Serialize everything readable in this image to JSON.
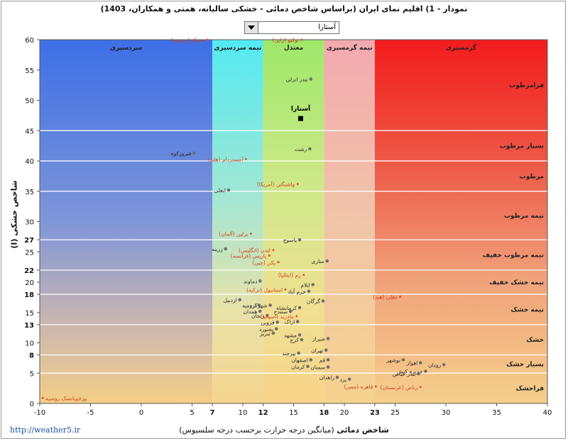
{
  "title": "نمودار - 1) اقلیم نمای ایران (براساس شاخص دمائی - خشکی سالیانه، همتی و همکاران، 1403)",
  "station_select": {
    "value": "آستارا"
  },
  "footer": {
    "url": "http://weather5.ir"
  },
  "chart_data": {
    "type": "scatter",
    "title": "نمودار - 1) اقلیم نمای ایران (براساس شاخص دمائی - خشکی سالیانه، همتی و همکاران، 1403)",
    "xlabel_main": "شاخص دمائی",
    "xlabel_sub": "(میانگین درجه حرارت برحسب درجه سلسیوس)",
    "ylabel": "شاخص خشکی (I)",
    "xlim": [
      -10,
      40
    ],
    "ylim": [
      0,
      60
    ],
    "x_ticks": [
      -10,
      -5,
      0,
      5,
      7,
      10,
      12,
      15,
      18,
      20,
      23,
      25,
      30,
      35,
      40
    ],
    "x_ticks_bold": [
      7,
      12,
      18,
      23
    ],
    "y_ticks": [
      0,
      5,
      8,
      10,
      13,
      15,
      18,
      20,
      22,
      25,
      27,
      30,
      35,
      40,
      45,
      50,
      55,
      60
    ],
    "y_ticks_bold": [
      8,
      13,
      18,
      22,
      27
    ],
    "temperature_zones": [
      {
        "label": "سردسیری",
        "from": -10,
        "to": 7
      },
      {
        "label": "نیمه سردسیری",
        "from": 7,
        "to": 12
      },
      {
        "label": "معتدل",
        "from": 12,
        "to": 18
      },
      {
        "label": "نیمه گرمسیری",
        "from": 18,
        "to": 23
      },
      {
        "label": "گرمسیری",
        "from": 23,
        "to": 40
      }
    ],
    "humidity_zones": [
      {
        "label": "فراخشک",
        "from": 0,
        "to": 5
      },
      {
        "label": "بسیار خشک",
        "from": 5,
        "to": 8
      },
      {
        "label": "خشک",
        "from": 8,
        "to": 13
      },
      {
        "label": "نیمه خشک",
        "from": 13,
        "to": 18
      },
      {
        "label": "نیمه خشک خفیف",
        "from": 18,
        "to": 22
      },
      {
        "label": "نیمه مرطوب خفیف",
        "from": 22,
        "to": 27
      },
      {
        "label": "نیمه مرطوب",
        "from": 27,
        "to": 35
      },
      {
        "label": "مرطوب",
        "from": 35,
        "to": 40
      },
      {
        "label": "بسیار مرطوب",
        "from": 40,
        "to": 45
      },
      {
        "label": "فرامرطوب",
        "from": 45,
        "to": 60
      }
    ],
    "highlighted_station": {
      "name": "آستارا",
      "x": 15.7,
      "y": 47
    },
    "iran_stations": [
      {
        "name": "بندر انزلی",
        "x": 16.7,
        "y": 53.5
      },
      {
        "name": "رشت",
        "x": 16.6,
        "y": 42
      },
      {
        "name": "فیروزکوه",
        "x": 5.2,
        "y": 41.3
      },
      {
        "name": "ابعلی",
        "x": 8.6,
        "y": 35.2
      },
      {
        "name": "یاسوج",
        "x": 15.6,
        "y": 27
      },
      {
        "name": "زرینه",
        "x": 8.3,
        "y": 25.5
      },
      {
        "name": "ساری",
        "x": 18.3,
        "y": 23.5
      },
      {
        "name": "دماوند",
        "x": 11.7,
        "y": 20.2
      },
      {
        "name": "ایلام",
        "x": 16.9,
        "y": 19.6
      },
      {
        "name": "خرم آباد",
        "x": 16.5,
        "y": 18.5
      },
      {
        "name": "گرگان",
        "x": 17.9,
        "y": 16.9
      },
      {
        "name": "اردبیل",
        "x": 9.7,
        "y": 17.1
      },
      {
        "name": "ارومیه",
        "x": 11.6,
        "y": 16.2
      },
      {
        "name": "شهرکرد",
        "x": 12.7,
        "y": 16.2
      },
      {
        "name": "کرمانشاه",
        "x": 15.6,
        "y": 15.8
      },
      {
        "name": "سنندج",
        "x": 14.7,
        "y": 15.2
      },
      {
        "name": "همدان",
        "x": 11.7,
        "y": 15.2
      },
      {
        "name": "زنجان",
        "x": 12.4,
        "y": 14.5
      },
      {
        "name": "اراک",
        "x": 15.4,
        "y": 13.5
      },
      {
        "name": "قزوین",
        "x": 13.4,
        "y": 13.4
      },
      {
        "name": "بجنورد",
        "x": 13.3,
        "y": 12.3
      },
      {
        "name": "مشهد",
        "x": 15.6,
        "y": 11.3
      },
      {
        "name": "تبریز",
        "x": 13.0,
        "y": 11.6
      },
      {
        "name": "کرج",
        "x": 15.8,
        "y": 10.5
      },
      {
        "name": "شیراز",
        "x": 18.4,
        "y": 10.7
      },
      {
        "name": "تهران",
        "x": 18.2,
        "y": 8.8
      },
      {
        "name": "بیرجند",
        "x": 15.5,
        "y": 8.3
      },
      {
        "name": "اصفهان",
        "x": 16.7,
        "y": 7.2
      },
      {
        "name": "قم",
        "x": 18.4,
        "y": 7.2
      },
      {
        "name": "سمنان",
        "x": 18.4,
        "y": 6
      },
      {
        "name": "کرمان",
        "x": 16.4,
        "y": 6.1
      },
      {
        "name": "یزد",
        "x": 20.5,
        "y": 4
      },
      {
        "name": "زاهدان",
        "x": 19.3,
        "y": 4.3
      },
      {
        "name": "بوشهر",
        "x": 25.8,
        "y": 7.2
      },
      {
        "name": "اهواز",
        "x": 27.5,
        "y": 6.7
      },
      {
        "name": "رودان",
        "x": 29.8,
        "y": 6.4
      },
      {
        "name": "جزیره کیش",
        "x": 28.0,
        "y": 5.3
      },
      {
        "name": "بندر عباس",
        "x": 27.3,
        "y": 4.9
      }
    ],
    "world_stations": [
      {
        "name": "مسکو (روسیه)",
        "x": 6.5,
        "y": 60
      },
      {
        "name": "توکیو (ژاپن)",
        "x": 15.8,
        "y": 60
      },
      {
        "name": "آمستردام (هلند)",
        "x": 10.3,
        "y": 40.3
      },
      {
        "name": "واشنگتن (آمریکا)",
        "x": 15.4,
        "y": 36.2
      },
      {
        "name": "برلین (آلمان)",
        "x": 10.8,
        "y": 28
      },
      {
        "name": "لندن (انگلیس)",
        "x": 13.0,
        "y": 25.3
      },
      {
        "name": "پاریس (فرانسه)",
        "x": 12.6,
        "y": 24.4
      },
      {
        "name": "پکن (چین)",
        "x": 13.5,
        "y": 23.3
      },
      {
        "name": "رم (ایتالیا)",
        "x": 16.0,
        "y": 21.2
      },
      {
        "name": "استانبول (ترکیه)",
        "x": 14.2,
        "y": 18.8
      },
      {
        "name": "مادرید (اسپانیا)",
        "x": 15.3,
        "y": 14.4
      },
      {
        "name": "دهلی (هند)",
        "x": 25.5,
        "y": 17.6
      },
      {
        "name": "ریاض (عربستان)",
        "x": 27.5,
        "y": 2.7
      },
      {
        "name": "قاهره (مصر)",
        "x": 23.1,
        "y": 2.8
      },
      {
        "name": "ورخویانسک روسیه",
        "x": -9.7,
        "y": 0.9
      }
    ]
  }
}
